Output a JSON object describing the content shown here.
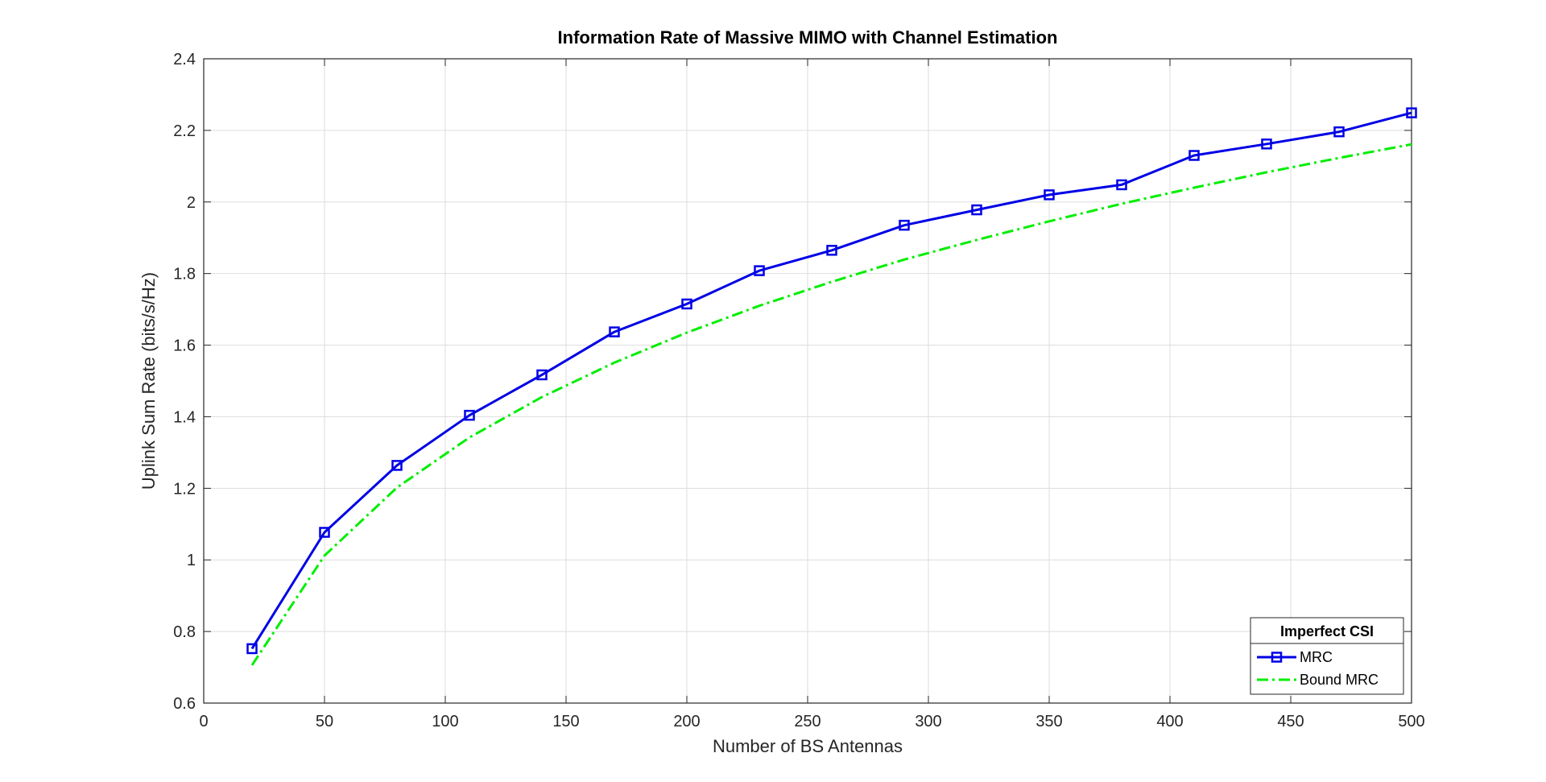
{
  "chart_data": {
    "type": "line",
    "title": "Information Rate of Massive MIMO with Channel Estimation",
    "xlabel": "Number of BS Antennas",
    "ylabel": "Uplink Sum Rate (bits/s/Hz)",
    "xlim": [
      0,
      500
    ],
    "ylim": [
      0.6,
      2.4
    ],
    "xticks": [
      0,
      50,
      100,
      150,
      200,
      250,
      300,
      350,
      400,
      450,
      500
    ],
    "yticks": [
      0.6,
      0.8,
      1,
      1.2,
      1.4,
      1.6,
      1.8,
      2,
      2.2,
      2.4
    ],
    "xtick_labels": [
      "0",
      "50",
      "100",
      "150",
      "200",
      "250",
      "300",
      "350",
      "400",
      "450",
      "500"
    ],
    "ytick_labels": [
      "0.6",
      "0.8",
      "1",
      "1.2",
      "1.4",
      "1.6",
      "1.8",
      "2",
      "2.2",
      "2.4"
    ],
    "grid": true,
    "legend": {
      "title": "Imperfect CSI",
      "placement": "bottom-right"
    },
    "x": [
      20,
      50,
      80,
      110,
      140,
      170,
      200,
      230,
      260,
      290,
      320,
      350,
      380,
      410,
      440,
      470,
      500
    ],
    "series": [
      {
        "name": "MRC",
        "color": "#0000e6",
        "style": "solid",
        "marker": "square",
        "values": [
          0.752,
          1.077,
          1.264,
          1.404,
          1.517,
          1.637,
          1.715,
          1.808,
          1.865,
          1.935,
          1.978,
          2.02,
          2.048,
          2.13,
          2.162,
          2.196,
          2.249
        ]
      },
      {
        "name": "Bound MRC",
        "color": "#00ee00",
        "style": "dashdot",
        "marker": "none",
        "values": [
          0.706,
          1.012,
          1.202,
          1.342,
          1.455,
          1.551,
          1.635,
          1.71,
          1.777,
          1.839,
          1.894,
          1.946,
          1.995,
          2.04,
          2.083,
          2.123,
          2.161
        ]
      }
    ]
  }
}
